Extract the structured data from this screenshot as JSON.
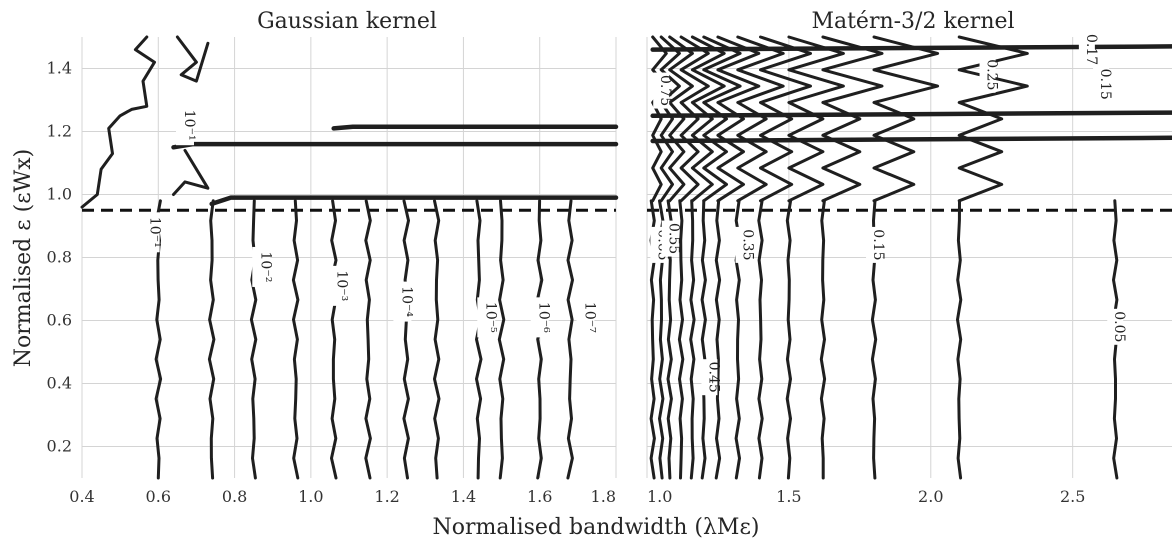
{
  "chart_data": [
    {
      "type": "line",
      "subtype": "contour",
      "title": "Gaussian kernel",
      "xlabel": "Normalised bandwidth (λMε)",
      "ylabel": "Normalised ε (εWx)",
      "xlim": [
        0.4,
        1.8
      ],
      "ylim": [
        0.1,
        1.5
      ],
      "xticks": [
        "0.4",
        "0.6",
        "0.8",
        "1.0",
        "1.2",
        "1.4",
        "1.6",
        "1.8"
      ],
      "yticks": [
        "0.2",
        "0.4",
        "0.6",
        "0.8",
        "1.0",
        "1.2",
        "1.4"
      ],
      "grid": true,
      "threshold_line": {
        "y": 0.95,
        "style": "dashed"
      },
      "level_labels": [
        "10^-1",
        "10^-1",
        "10^-2",
        "10^-3",
        "10^-4",
        "10^-5",
        "10^-6",
        "10^-7"
      ],
      "contour_positions_below_threshold": [
        0.6,
        0.74,
        0.85,
        0.96,
        1.06,
        1.15,
        1.25,
        1.33,
        1.44,
        1.5,
        1.6,
        1.68
      ]
    },
    {
      "type": "line",
      "subtype": "contour",
      "title": "Matérn-3/2 kernel",
      "xlim": [
        1.0,
        2.85
      ],
      "ylim": [
        0.1,
        1.5
      ],
      "xticks": [
        "1.0",
        "1.5",
        "2.0",
        "2.5"
      ],
      "grid": true,
      "threshold_line": {
        "y": 0.95,
        "style": "dashed"
      },
      "level_labels": [
        "0.65",
        "0.55",
        "0.45",
        "0.35",
        "0.15",
        "0.05",
        "0.75",
        "0.25",
        "0.17",
        "0.15"
      ],
      "contour_positions_below_threshold": [
        1.02,
        1.05,
        1.08,
        1.12,
        1.16,
        1.2,
        1.25,
        1.32,
        1.4,
        1.5,
        1.62,
        1.8,
        2.1,
        2.65
      ]
    }
  ]
}
